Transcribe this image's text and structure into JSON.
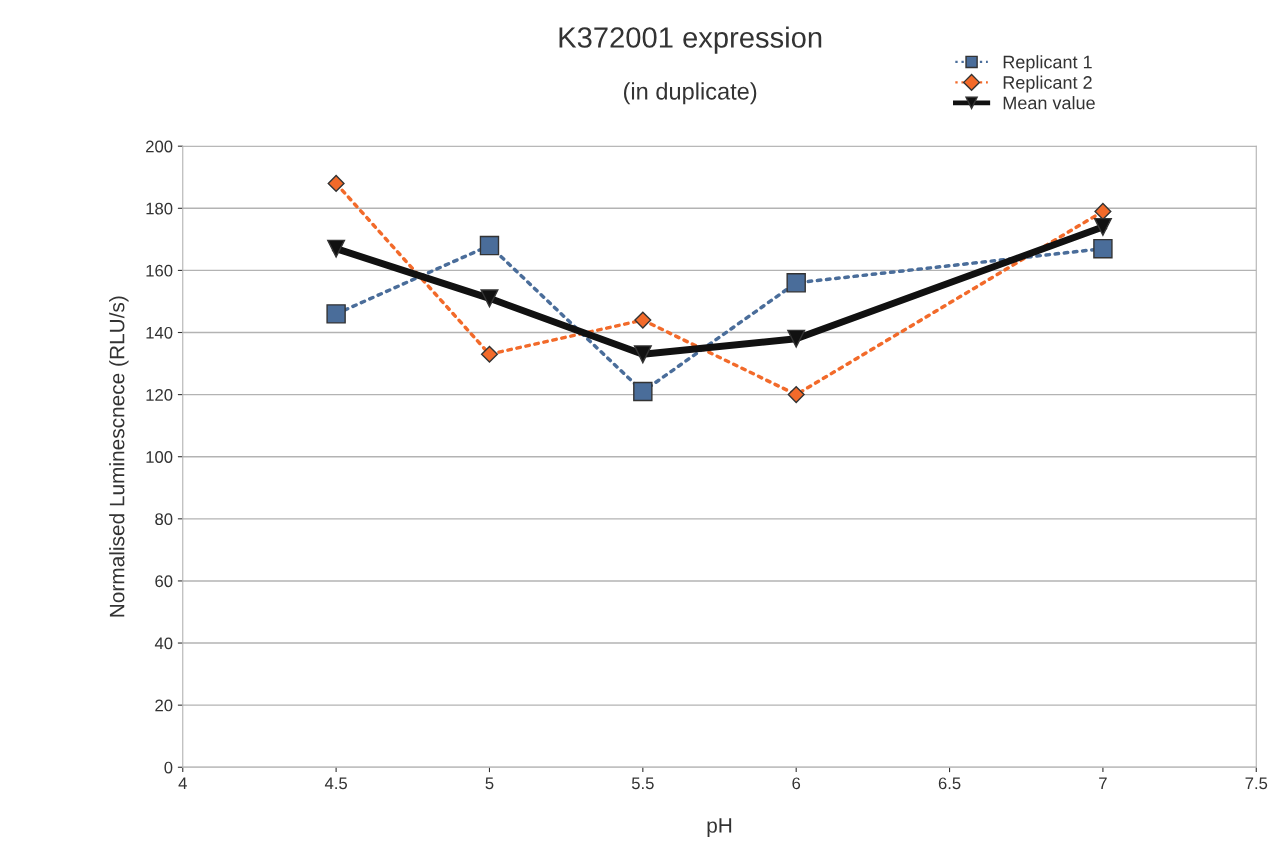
{
  "chart_data": {
    "type": "line",
    "title": "K372001 expression",
    "subtitle": "(in duplicate)",
    "xlabel": "pH",
    "ylabel": "Normalised Luminescnece (RLU/s)",
    "x": [
      4.5,
      5,
      5.5,
      6,
      7
    ],
    "series": [
      {
        "name": "Replicant 1",
        "color": "#4a6d9a",
        "values": [
          146,
          168,
          121,
          156,
          167
        ],
        "marker": "square",
        "line_style": "dotted"
      },
      {
        "name": "Replicant 2",
        "color": "#f26a2a",
        "values": [
          188,
          133,
          144,
          120,
          179
        ],
        "marker": "diamond",
        "line_style": "dotted"
      },
      {
        "name": "Mean value",
        "color": "#111111",
        "values": [
          167,
          151,
          133,
          138,
          174
        ],
        "marker": "triangle",
        "line_style": "solid"
      }
    ],
    "xlim": [
      4,
      7.5
    ],
    "xticks": [
      4,
      4.5,
      5,
      5.5,
      6,
      6.5,
      7,
      7.5
    ],
    "ylim": [
      0,
      200
    ],
    "yticks": [
      0,
      20,
      40,
      60,
      80,
      100,
      120,
      140,
      160,
      180,
      200
    ],
    "grid": "y",
    "legend": "top right"
  }
}
